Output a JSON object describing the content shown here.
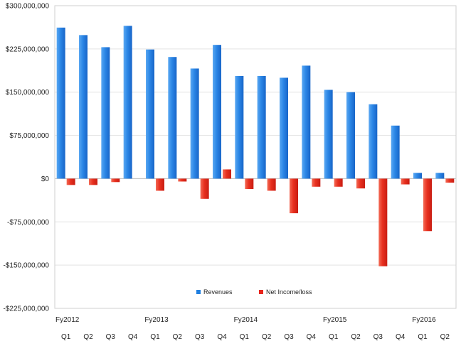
{
  "chart_data": {
    "type": "bar",
    "title": "",
    "xlabel": "",
    "ylabel": "",
    "ylim": [
      -225000000,
      300000000
    ],
    "yticks": [
      300000000,
      225000000,
      150000000,
      75000000,
      0,
      -75000000,
      -150000000,
      -225000000
    ],
    "ytick_labels": [
      "$300,000,000",
      "$225,000,000",
      "$150,000,000",
      "$75,000,000",
      "$0",
      "-$75,000,000",
      "-$150,000,000",
      "-$225,000,000"
    ],
    "grid": true,
    "legend_position": "bottom-center",
    "categories": [
      "Q1",
      "Q2",
      "Q3",
      "Q4",
      "Q1",
      "Q2",
      "Q3",
      "Q4",
      "Q1",
      "Q2",
      "Q3",
      "Q4",
      "Q1",
      "Q2",
      "Q3",
      "Q4",
      "Q1",
      "Q2"
    ],
    "year_labels": [
      {
        "label": "Fy2012",
        "index": 0
      },
      {
        "label": "Fy2013",
        "index": 4
      },
      {
        "label": "Fy2014",
        "index": 8
      },
      {
        "label": "Fy2015",
        "index": 12
      },
      {
        "label": "Fy2016",
        "index": 16
      }
    ],
    "series": [
      {
        "name": "Revenues",
        "color": "#1f7fe0",
        "values": [
          262000000,
          249000000,
          228000000,
          265000000,
          224000000,
          211000000,
          191000000,
          232000000,
          178000000,
          178000000,
          175000000,
          196000000,
          154000000,
          150000000,
          129000000,
          92000000,
          10000000,
          10000000
        ]
      },
      {
        "name": "Net Income/loss",
        "color": "#e8261c",
        "values": [
          -11000000,
          -11000000,
          -6000000,
          0,
          -21000000,
          -5000000,
          -35000000,
          16000000,
          -18000000,
          -21000000,
          -60000000,
          -14000000,
          -14000000,
          -17000000,
          -152000000,
          -10000000,
          -91000000,
          -7000000
        ]
      }
    ]
  }
}
